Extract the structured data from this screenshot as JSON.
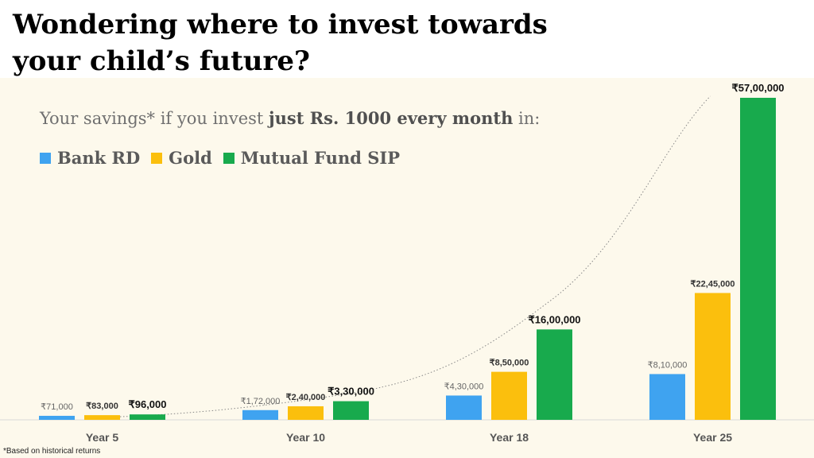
{
  "heading": {
    "line1": "Wondering where to invest towards",
    "line2": "your child’s future?"
  },
  "subtitle": {
    "part1": "Your savings* if you invest ",
    "part2": "just Rs. 1000 every month",
    "part3": " in:"
  },
  "footnote": "*Based on historical returns",
  "colors": {
    "bank_rd": "#3fa3f0",
    "gold": "#fbbf0d",
    "mutual_fund": "#18aa4d",
    "panel_bg": "#fdf9ec"
  },
  "chart_data": {
    "type": "bar",
    "categories": [
      "Year 5",
      "Year 10",
      "Year 18",
      "Year 25"
    ],
    "series": [
      {
        "name": "Bank RD",
        "values": [
          71000,
          172000,
          430000,
          810000
        ],
        "labels": [
          "₹71,000",
          "₹1,72,000",
          "₹4,30,000",
          "₹8,10,000"
        ]
      },
      {
        "name": "Gold",
        "values": [
          83000,
          240000,
          850000,
          2245000
        ],
        "labels": [
          "₹83,000",
          "₹2,40,000",
          "₹8,50,000",
          "₹22,45,000"
        ]
      },
      {
        "name": "Mutual Fund SIP",
        "values": [
          96000,
          330000,
          1600000,
          5700000
        ],
        "labels": [
          "₹96,000",
          "₹3,30,000",
          "₹16,00,000",
          "₹57,00,000"
        ]
      }
    ],
    "ylim": [
      0,
      5700000
    ],
    "trend_line": "dotted curve rising through the Mutual Fund SIP bars",
    "grid": false,
    "legend": "top-left"
  }
}
